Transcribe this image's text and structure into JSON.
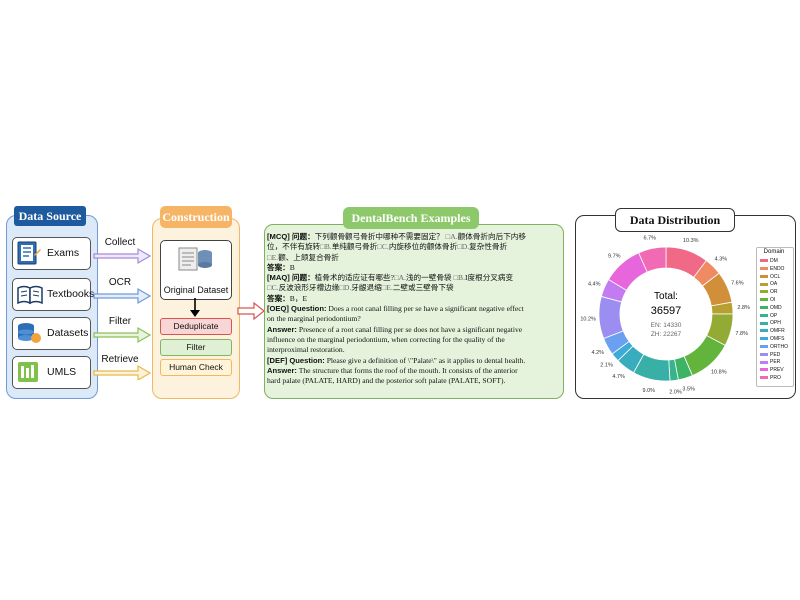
{
  "data_source": {
    "title": "Data Source",
    "items": [
      {
        "label": "Exams",
        "arrow_label": "Collect"
      },
      {
        "label": "Textbooks",
        "arrow_label": "OCR"
      },
      {
        "label": "Datasets",
        "arrow_label": "Filter"
      },
      {
        "label": "UMLS",
        "arrow_label": "Retrieve"
      }
    ]
  },
  "construction": {
    "title": "Construction",
    "original_dataset": "Original Dataset",
    "steps": [
      {
        "label": "Deduplicate",
        "color": "#f8d6d6",
        "border": "#d9534f"
      },
      {
        "label": "Filter",
        "color": "#dff0d5",
        "border": "#82b366"
      },
      {
        "label": "Human Check",
        "color": "#fff3d9",
        "border": "#f0b95f"
      }
    ]
  },
  "dentalbench": {
    "title": "DentalBench Examples",
    "mcq": {
      "tag": "[MCQ] 问题：",
      "question": "下列颧骨颧弓骨折中哪种不需要固定？",
      "lines": [
        {
          "opt": "□A.",
          "text": "颧体骨折向后下内移"
        },
        {
          "text": "位，不伴有旋转",
          "opt2": "□B.",
          "text2": "单纯颧弓骨折",
          "opt3": "□C.",
          "text3": "内旋移位的颧体骨折",
          "opt4": "□D.",
          "text4": "复杂性骨折"
        },
        {
          "opt": "□E.",
          "text": "颧、上颌复合骨折"
        }
      ],
      "answer_label": "答案：",
      "answer": "B"
    },
    "maq": {
      "tag": "[MAQ] 问题：",
      "question": "植骨术的适应证有哪些?",
      "opt_a": "□A.",
      "a": "浅的一壁骨袋",
      "opt_b": "□B.",
      "b": "I度根分叉病变",
      "opt_c": "□C.",
      "c": "反波浪形牙槽边缘",
      "opt_d": "□D.",
      "d": "牙龈退缩",
      "opt_e": "□E.",
      "e": "二壁或三壁骨下袋",
      "answer_label": "答案：",
      "answer": "B，E"
    },
    "oeq": {
      "tag": "[OEQ] Question:",
      "question_l1": "Does a root canal filling per se have a significant negative effect",
      "question_l2": "on the marginal periodontium?",
      "answer_label": "Answer:",
      "answer_l1": "Presence of a root canal filling per se does not have a significant negative",
      "answer_l2": "influence on the marginal periodontium, when correcting for the quality of the",
      "answer_l3": "interproximal restoration."
    },
    "def": {
      "tag": "[DEF] Question:",
      "question": "Please give a definition of \\\"Palate\\\" as it applies to dental health.",
      "answer_label": "Answer:",
      "answer_l1": "The structure that forms the roof of the mouth. It consists of the anterior",
      "answer_l2": "hard palate (PALATE, HARD) and the posterior soft palate (PALATE, SOFT)."
    }
  },
  "data_distribution": {
    "title": "Data Distribution",
    "total_label": "Total:",
    "total": "36597",
    "en": "EN: 14330",
    "zh": "ZH: 22267",
    "legend_title": "Domain"
  },
  "chart_data": {
    "type": "pie",
    "title": "Data Distribution",
    "hole": true,
    "center_text": [
      "Total:",
      "36597",
      "EN: 14330",
      "ZH: 22267"
    ],
    "legend_title": "Domain",
    "legend_position": "right",
    "categories": [
      "DM",
      "ENDO",
      "OCL",
      "OA",
      "OR",
      "OI",
      "OMD",
      "OP",
      "OPH",
      "OMFR",
      "OMFS",
      "ORTHO",
      "PED",
      "PER",
      "PREV",
      "PRO"
    ],
    "colors": [
      "#f06a87",
      "#ef8b62",
      "#d28f39",
      "#b6a032",
      "#93ab35",
      "#62b43d",
      "#3db364",
      "#37b38d",
      "#38b0a7",
      "#39adbe",
      "#3eaad8",
      "#6b9ff0",
      "#9b8ef0",
      "#c47af0",
      "#e866dc",
      "#f06bb3"
    ],
    "values": [
      10.3,
      4.3,
      7.6,
      2.8,
      7.8,
      10.8,
      3.5,
      2.0,
      9.0,
      4.7,
      2.1,
      4.2,
      10.2,
      4.4,
      9.7,
      6.7
    ],
    "value_labels": [
      "10.3%",
      "4.3%",
      "7.6%",
      "2.8%",
      "7.8%",
      "10.8%",
      "3.5%",
      "2.0%",
      "9.0%",
      "4.7%",
      "2.1%",
      "4.2%",
      "10.2%",
      "4.4%",
      "9.7%",
      "6.7%"
    ]
  }
}
